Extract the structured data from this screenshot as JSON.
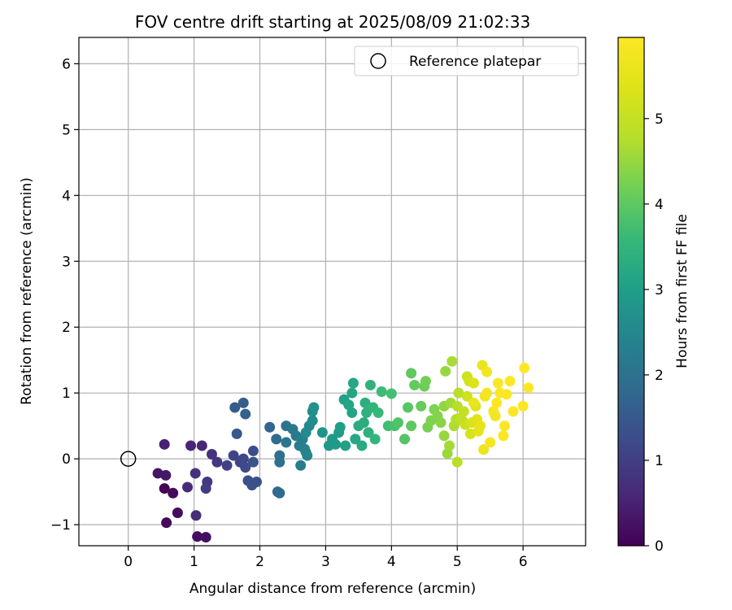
{
  "chart_data": {
    "type": "scatter",
    "title": "FOV centre drift starting at 2025/08/09 21:02:33",
    "xlabel": "Angular distance from reference (arcmin)",
    "ylabel": "Rotation from reference (arcmin)",
    "xlim": [
      -0.75,
      6.95
    ],
    "ylim": [
      -1.32,
      6.4
    ],
    "x_ticks": [
      "0",
      "1",
      "2",
      "3",
      "4",
      "5",
      "6"
    ],
    "y_ticks": [
      "−1",
      "0",
      "1",
      "2",
      "3",
      "4",
      "5",
      "6"
    ],
    "grid": true,
    "colormap": "viridis",
    "colorbar": {
      "label": "Hours from first FF file",
      "range": [
        0,
        5.95
      ],
      "ticks": [
        "0",
        "1",
        "2",
        "3",
        "4",
        "5"
      ]
    },
    "legend": {
      "location": "upper right",
      "entries": [
        {
          "label": "Reference platepar",
          "marker": "open-circle",
          "x": 0,
          "y": 0
        }
      ]
    },
    "series": [
      {
        "points": [
          [
            0.55,
            -0.45,
            0.05
          ],
          [
            0.58,
            -0.97,
            0.1
          ],
          [
            0.68,
            -0.52,
            0.12
          ],
          [
            0.75,
            -0.82,
            0.15
          ],
          [
            1.05,
            -1.18,
            0.2
          ],
          [
            1.18,
            -1.19,
            0.22
          ],
          [
            0.45,
            -0.22,
            0.3
          ],
          [
            0.57,
            -0.25,
            0.35
          ],
          [
            0.55,
            0.22,
            0.5
          ],
          [
            0.95,
            0.2,
            0.55
          ],
          [
            1.12,
            0.2,
            0.6
          ],
          [
            0.9,
            -0.43,
            0.65
          ],
          [
            1.03,
            -0.86,
            0.7
          ],
          [
            1.02,
            -0.22,
            0.75
          ],
          [
            1.27,
            0.07,
            0.8
          ],
          [
            1.35,
            -0.05,
            0.85
          ],
          [
            1.2,
            -0.35,
            0.9
          ],
          [
            1.18,
            -0.45,
            0.95
          ],
          [
            1.5,
            -0.1,
            1.05
          ],
          [
            1.6,
            0.05,
            1.1
          ],
          [
            1.7,
            -0.05,
            1.12
          ],
          [
            1.75,
            0.0,
            1.15
          ],
          [
            1.78,
            -0.13,
            1.2
          ],
          [
            1.9,
            0.12,
            1.25
          ],
          [
            1.82,
            -0.33,
            1.3
          ],
          [
            1.88,
            -0.4,
            1.35
          ],
          [
            1.95,
            -0.35,
            1.35
          ],
          [
            1.9,
            -0.05,
            1.4
          ],
          [
            1.65,
            0.38,
            1.45
          ],
          [
            1.62,
            0.78,
            1.55
          ],
          [
            1.75,
            0.85,
            1.6
          ],
          [
            1.78,
            0.68,
            1.65
          ],
          [
            2.15,
            0.48,
            1.75
          ],
          [
            2.27,
            -0.5,
            1.8
          ],
          [
            2.3,
            -0.52,
            1.85
          ],
          [
            2.25,
            0.3,
            1.9
          ],
          [
            2.3,
            0.05,
            1.95
          ],
          [
            2.3,
            -0.05,
            2.0
          ],
          [
            2.4,
            0.5,
            2.05
          ],
          [
            2.4,
            0.25,
            2.1
          ],
          [
            2.5,
            0.45,
            2.15
          ],
          [
            2.55,
            0.35,
            2.2
          ],
          [
            2.6,
            0.2,
            2.25
          ],
          [
            2.62,
            -0.1,
            2.25
          ],
          [
            2.65,
            0.3,
            2.3
          ],
          [
            2.68,
            0.15,
            2.35
          ],
          [
            2.7,
            0.1,
            2.4
          ],
          [
            2.72,
            0.05,
            2.45
          ],
          [
            2.75,
            0.5,
            2.5
          ],
          [
            2.7,
            0.4,
            2.55
          ],
          [
            2.8,
            0.58,
            2.6
          ],
          [
            2.8,
            0.72,
            2.65
          ],
          [
            2.82,
            0.78,
            2.7
          ],
          [
            2.95,
            0.4,
            2.75
          ],
          [
            3.05,
            0.2,
            2.85
          ],
          [
            3.1,
            0.3,
            2.85
          ],
          [
            3.15,
            0.22,
            2.9
          ],
          [
            3.2,
            0.4,
            2.95
          ],
          [
            3.22,
            0.48,
            3.0
          ],
          [
            3.28,
            0.9,
            3.05
          ],
          [
            3.3,
            0.2,
            3.05
          ],
          [
            3.35,
            0.82,
            3.1
          ],
          [
            3.4,
            0.7,
            3.15
          ],
          [
            3.4,
            1.0,
            3.15
          ],
          [
            3.42,
            1.15,
            3.2
          ],
          [
            3.45,
            0.3,
            3.2
          ],
          [
            3.5,
            0.5,
            3.25
          ],
          [
            3.55,
            0.2,
            3.25
          ],
          [
            3.58,
            0.55,
            3.3
          ],
          [
            3.6,
            0.85,
            3.35
          ],
          [
            3.62,
            0.7,
            3.4
          ],
          [
            3.65,
            0.4,
            3.4
          ],
          [
            3.68,
            1.12,
            3.45
          ],
          [
            3.72,
            0.78,
            3.5
          ],
          [
            3.75,
            0.3,
            3.55
          ],
          [
            3.8,
            0.7,
            3.6
          ],
          [
            3.85,
            1.02,
            3.65
          ],
          [
            3.95,
            0.5,
            3.7
          ],
          [
            4.0,
            0.99,
            3.75
          ],
          [
            4.05,
            0.5,
            3.8
          ],
          [
            4.1,
            0.55,
            3.85
          ],
          [
            4.2,
            0.3,
            3.9
          ],
          [
            4.25,
            0.78,
            3.95
          ],
          [
            4.3,
            0.5,
            4.0
          ],
          [
            4.3,
            1.3,
            4.0
          ],
          [
            4.35,
            1.12,
            4.05
          ],
          [
            4.45,
            0.8,
            4.1
          ],
          [
            4.5,
            1.1,
            4.15
          ],
          [
            4.52,
            1.18,
            4.2
          ],
          [
            4.55,
            0.48,
            4.25
          ],
          [
            4.6,
            0.58,
            4.3
          ],
          [
            4.65,
            0.75,
            4.3
          ],
          [
            4.7,
            0.65,
            4.35
          ],
          [
            4.75,
            0.55,
            4.4
          ],
          [
            4.8,
            0.8,
            4.45
          ],
          [
            4.8,
            0.35,
            4.5
          ],
          [
            4.82,
            1.33,
            4.5
          ],
          [
            4.85,
            0.08,
            4.55
          ],
          [
            4.88,
            0.2,
            4.6
          ],
          [
            4.9,
            0.85,
            4.6
          ],
          [
            4.92,
            1.48,
            4.65
          ],
          [
            4.95,
            0.5,
            4.7
          ],
          [
            4.98,
            0.6,
            4.75
          ],
          [
            5.0,
            0.8,
            4.8
          ],
          [
            5.0,
            -0.05,
            4.85
          ],
          [
            5.02,
            1.0,
            4.85
          ],
          [
            5.05,
            0.62,
            4.9
          ],
          [
            5.08,
            0.58,
            4.95
          ],
          [
            5.1,
            0.72,
            5.0
          ],
          [
            5.12,
            0.52,
            5.05
          ],
          [
            5.15,
            1.25,
            5.1
          ],
          [
            5.15,
            0.95,
            5.15
          ],
          [
            5.18,
            1.18,
            5.2
          ],
          [
            5.2,
            0.38,
            5.25
          ],
          [
            5.22,
            0.55,
            5.3
          ],
          [
            5.25,
            1.15,
            5.35
          ],
          [
            5.28,
            0.8,
            5.4
          ],
          [
            5.3,
            0.6,
            5.45
          ],
          [
            5.32,
            0.42,
            5.5
          ],
          [
            5.35,
            0.5,
            5.55
          ],
          [
            5.38,
            1.42,
            5.6
          ],
          [
            5.4,
            0.14,
            5.65
          ],
          [
            5.42,
            0.95,
            5.7
          ],
          [
            5.45,
            1.32,
            5.75
          ],
          [
            5.5,
            0.25,
            5.8
          ],
          [
            5.55,
            0.72,
            5.85
          ],
          [
            5.6,
            0.85,
            5.9
          ],
          [
            5.62,
            1.15,
            5.9
          ],
          [
            5.65,
            1.0,
            5.92
          ],
          [
            5.7,
            0.35,
            5.92
          ],
          [
            5.72,
            0.5,
            5.93
          ],
          [
            5.75,
            0.98,
            5.93
          ],
          [
            5.8,
            1.18,
            5.94
          ],
          [
            5.85,
            0.72,
            5.94
          ],
          [
            6.0,
            0.8,
            5.95
          ],
          [
            6.02,
            1.38,
            5.95
          ],
          [
            6.08,
            1.08,
            5.95
          ],
          [
            5.25,
            0.85,
            5.6
          ],
          [
            5.58,
            0.65,
            5.75
          ],
          [
            5.45,
            1.0,
            5.8
          ]
        ]
      }
    ]
  }
}
